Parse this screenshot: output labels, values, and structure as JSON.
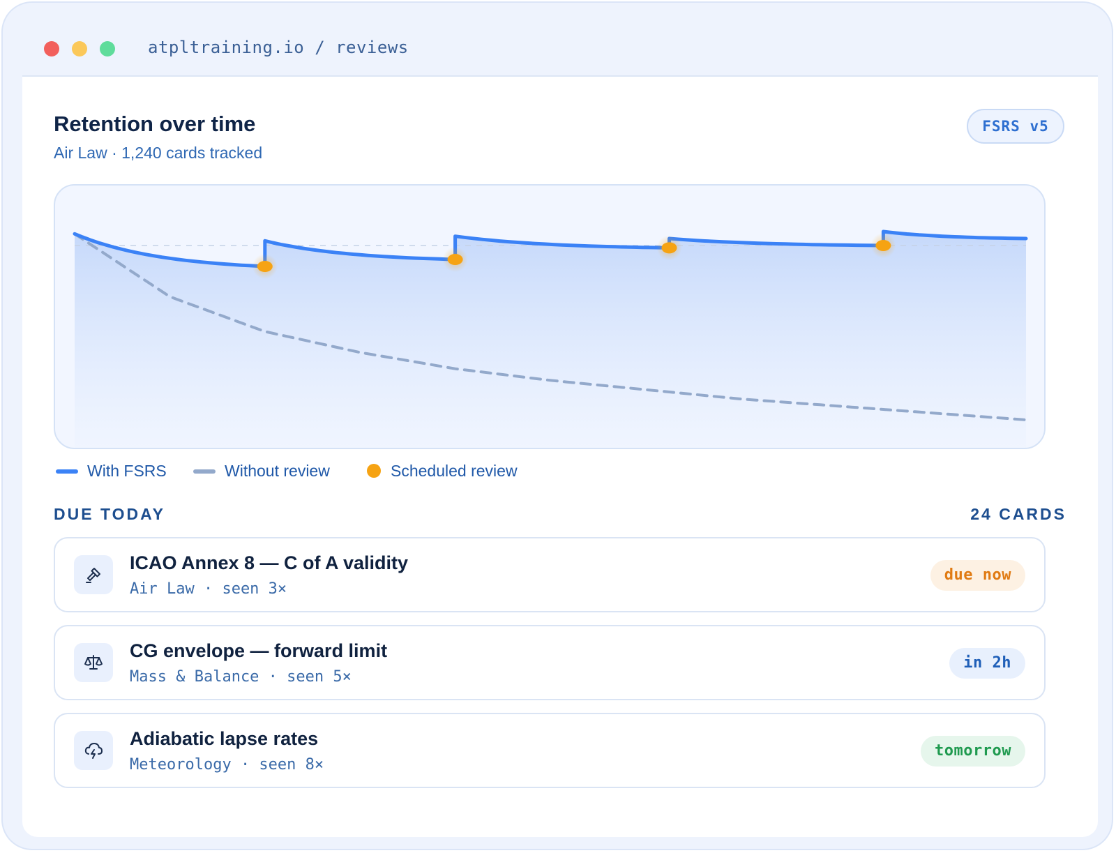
{
  "window": {
    "url": "atpltraining.io / reviews"
  },
  "header": {
    "title": "Retention over time",
    "subtitle": "Air Law · 1,240 cards tracked",
    "algorithm_badge": "FSRS v5"
  },
  "chart_data": {
    "type": "line",
    "title": "Retention over time",
    "xlabel": "",
    "ylabel": "",
    "grid": false,
    "target_line_dashed": true,
    "series": [
      {
        "name": "With FSRS",
        "color": "#3b82f6",
        "style": "solid",
        "area_fill": true,
        "segments": [
          {
            "x_start": 0.0,
            "x_end": 0.2,
            "y_start": 0.91,
            "y_end": 0.77
          },
          {
            "x_start": 0.2,
            "x_end": 0.4,
            "y_start": 0.88,
            "y_end": 0.8
          },
          {
            "x_start": 0.4,
            "x_end": 0.625,
            "y_start": 0.9,
            "y_end": 0.85
          },
          {
            "x_start": 0.625,
            "x_end": 0.85,
            "y_start": 0.89,
            "y_end": 0.86
          },
          {
            "x_start": 0.85,
            "x_end": 1.0,
            "y_start": 0.92,
            "y_end": 0.89
          }
        ]
      },
      {
        "name": "Without review",
        "color": "#93a9cb",
        "style": "dashed",
        "x": [
          0.0,
          0.1,
          0.2,
          0.3,
          0.4,
          0.5,
          0.6,
          0.7,
          0.8,
          0.9,
          1.0
        ],
        "y": [
          0.91,
          0.64,
          0.49,
          0.4,
          0.33,
          0.28,
          0.24,
          0.2,
          0.17,
          0.14,
          0.11
        ]
      },
      {
        "name": "Scheduled review",
        "color": "#f6a313",
        "style": "points",
        "x": [
          0.2,
          0.4,
          0.625,
          0.85
        ],
        "y": [
          0.77,
          0.8,
          0.85,
          0.86
        ]
      }
    ],
    "target_level": 0.86
  },
  "legend": {
    "with_fsrs": "With FSRS",
    "without_review": "Without review",
    "scheduled_review": "Scheduled review",
    "colors": {
      "with_fsrs": "#3b82f6",
      "without_review": "#93a9cb",
      "scheduled_review": "#f6a313"
    }
  },
  "due": {
    "label": "DUE TODAY",
    "count_label": "24 CARDS",
    "cards": [
      {
        "icon": "gavel-icon",
        "title": "ICAO Annex 8 — C of A validity",
        "meta": "Air Law · seen 3×",
        "status": "due now",
        "status_color": "#e07a12",
        "status_bg": "#fdf1e3"
      },
      {
        "icon": "scale-icon",
        "title": "CG envelope — forward limit",
        "meta": "Mass & Balance · seen 5×",
        "status": "in 2h",
        "status_color": "#1f5fb8",
        "status_bg": "#e8f0fd"
      },
      {
        "icon": "cloud-lightning-icon",
        "title": "Adiabatic lapse rates",
        "meta": "Meteorology · seen 8×",
        "status": "tomorrow",
        "status_color": "#1f9a4f",
        "status_bg": "#e6f6ec"
      }
    ]
  }
}
